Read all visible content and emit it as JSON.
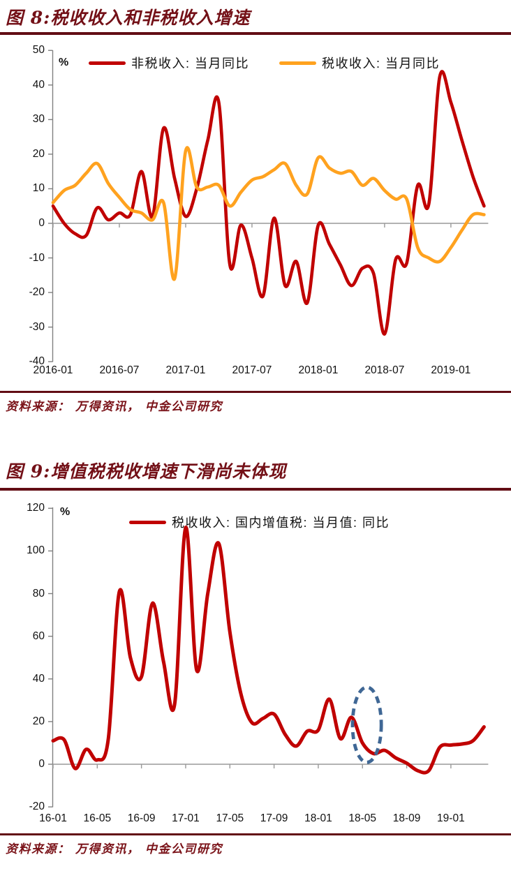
{
  "figures": [
    {
      "title": "图 8:税收收入和非税收入增速",
      "unit": "%",
      "source": "资料来源： 万得资讯， 中金公司研究"
    },
    {
      "title": "图 9:增值税税收增速下滑尚未体现",
      "unit": "%",
      "source": "资料来源： 万得资讯， 中金公司研究"
    }
  ],
  "colors": {
    "dark_red_line": "#C00000",
    "orange_line": "#FFA21F",
    "title_red": "#731017",
    "rule_red": "#620D14",
    "axis_gray": "#808080",
    "zero_line_gray": "#999999",
    "annotation_blue": "#3F6795"
  },
  "chart_data": [
    {
      "type": "line",
      "title": "图 8:税收收入和非税收入增速",
      "ylabel": "%",
      "xlabel": "",
      "grid": false,
      "legend_position": "top-inside",
      "ylim": [
        -40,
        50
      ],
      "ytick_step": 10,
      "x_tick_labels": [
        "2016-01",
        "2016-07",
        "2017-01",
        "2017-07",
        "2018-01",
        "2018-07",
        "2019-01"
      ],
      "x": [
        "2016-01",
        "2016-02",
        "2016-03",
        "2016-04",
        "2016-05",
        "2016-06",
        "2016-07",
        "2016-08",
        "2016-09",
        "2016-10",
        "2016-11",
        "2016-12",
        "2017-01",
        "2017-02",
        "2017-03",
        "2017-04",
        "2017-05",
        "2017-06",
        "2017-07",
        "2017-08",
        "2017-09",
        "2017-10",
        "2017-11",
        "2017-12",
        "2018-01",
        "2018-02",
        "2018-03",
        "2018-04",
        "2018-05",
        "2018-06",
        "2018-07",
        "2018-08",
        "2018-09",
        "2018-10",
        "2018-11",
        "2018-12",
        "2019-01",
        "2019-02",
        "2019-03",
        "2019-04"
      ],
      "series": [
        {
          "name": "非税收入: 当月同比",
          "color": "#C00000",
          "values": [
            5,
            0,
            -3,
            -3.5,
            4.5,
            1,
            3,
            2.5,
            15,
            2,
            27.5,
            13,
            2,
            10,
            24,
            35,
            -12,
            -0.5,
            -10,
            -21,
            1.5,
            -18,
            -11,
            -23,
            -0.5,
            -6,
            -12,
            -18,
            -13,
            -14.5,
            -32,
            -10.5,
            -11.5,
            11,
            5.5,
            42.5,
            35,
            24,
            13.5,
            5
          ]
        },
        {
          "name": "税收收入: 当月同比",
          "color": "#FFA21F",
          "values": [
            6,
            9.5,
            11,
            14.5,
            17.3,
            11.5,
            7.5,
            4,
            3,
            1,
            6,
            -16,
            21,
            10.5,
            10.5,
            11,
            5,
            9,
            12.5,
            13.5,
            15.5,
            17.3,
            11,
            8.5,
            19,
            16,
            14.5,
            15,
            11,
            13,
            9.5,
            7,
            7,
            -7,
            -10,
            -11,
            -7,
            -2,
            2.5,
            2.5
          ]
        }
      ]
    },
    {
      "type": "line",
      "title": "图 9:增值税税收增速下滑尚未体现",
      "ylabel": "%",
      "xlabel": "",
      "grid": false,
      "legend_position": "top-inside",
      "ylim": [
        -20,
        120
      ],
      "ytick_step": 20,
      "x_tick_labels": [
        "16-01",
        "16-05",
        "16-09",
        "17-01",
        "17-05",
        "17-09",
        "18-01",
        "18-05",
        "18-09",
        "19-01"
      ],
      "x": [
        "16-01",
        "16-02",
        "16-03",
        "16-04",
        "16-05",
        "16-06",
        "16-07",
        "16-08",
        "16-09",
        "16-10",
        "16-11",
        "16-12",
        "17-01",
        "17-02",
        "17-03",
        "17-04",
        "17-05",
        "17-06",
        "17-07",
        "17-08",
        "17-09",
        "17-10",
        "17-11",
        "17-12",
        "18-01",
        "18-02",
        "18-03",
        "18-04",
        "18-05",
        "18-06",
        "18-07",
        "18-08",
        "18-09",
        "18-10",
        "18-11",
        "18-12",
        "19-01",
        "19-02",
        "19-03",
        "19-04"
      ],
      "series": [
        {
          "name": "税收收入: 国内增值税: 当月值: 同比",
          "color": "#C00000",
          "values": [
            11,
            11.5,
            -2,
            7,
            2,
            12,
            81,
            50,
            41,
            75.5,
            48,
            28,
            111,
            44,
            80,
            103.5,
            62,
            33,
            19.5,
            21.5,
            23.5,
            14,
            8.5,
            15.5,
            16,
            30.5,
            12,
            22,
            10,
            5,
            6.5,
            3,
            0.5,
            -3,
            -3,
            8,
            9,
            9.5,
            11,
            17.5
          ]
        }
      ],
      "annotation": {
        "shape": "dashed-ellipse",
        "color": "#3F6795",
        "center_month": "2018-05",
        "center_month_index": 28.4,
        "center_value": 18.5,
        "rx_months": 1.3,
        "ry_value": 17.6
      }
    }
  ]
}
